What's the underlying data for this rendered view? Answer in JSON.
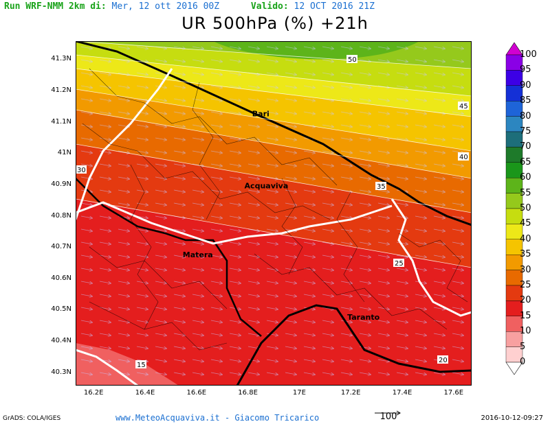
{
  "header": {
    "run_label": "Run WRF-NMM 2km di:",
    "run_date": "Mer, 12 ott 2016 00Z",
    "valid_label": "Valido:",
    "valid_date": "12 OCT 2016 21Z"
  },
  "title": "UR 500hPa (%) +21h",
  "axes": {
    "y_ticks": [
      "41.3N",
      "41.2N",
      "41.1N",
      "41N",
      "40.9N",
      "40.8N",
      "40.7N",
      "40.6N",
      "40.5N",
      "40.4N",
      "40.3N"
    ],
    "y_values": [
      41.3,
      41.2,
      41.1,
      41.0,
      40.9,
      40.8,
      40.7,
      40.6,
      40.5,
      40.4,
      40.3
    ],
    "x_ticks": [
      "16.2E",
      "16.4E",
      "16.6E",
      "16.8E",
      "17E",
      "17.2E",
      "17.4E",
      "17.6E"
    ],
    "x_values": [
      16.2,
      16.4,
      16.6,
      16.8,
      17.0,
      17.2,
      17.4,
      17.6
    ],
    "lon_range": [
      16.13,
      17.67
    ],
    "lat_range": [
      40.26,
      41.36
    ]
  },
  "cities": [
    {
      "name": "Bari",
      "lon": 16.87,
      "lat": 41.12
    },
    {
      "name": "Acquaviva",
      "lon": 16.84,
      "lat": 40.89
    },
    {
      "name": "Matera",
      "lon": 16.6,
      "lat": 40.67
    },
    {
      "name": "Taranto",
      "lon": 17.24,
      "lat": 40.47
    }
  ],
  "contour_labels": [
    "50",
    "45",
    "40",
    "35",
    "30",
    "25",
    "20",
    "15"
  ],
  "colorbar": {
    "levels": [
      "100",
      "95",
      "90",
      "85",
      "80",
      "75",
      "70",
      "65",
      "60",
      "55",
      "50",
      "45",
      "40",
      "35",
      "30",
      "25",
      "20",
      "15",
      "10",
      "5",
      "0"
    ],
    "colors": [
      "#d100d1",
      "#8a00e6",
      "#3c00e6",
      "#1430d6",
      "#1e64d8",
      "#2c86c0",
      "#1d6e7a",
      "#1e7a2a",
      "#1a961a",
      "#5db41a",
      "#95c91c",
      "#c6dd10",
      "#ede818",
      "#f5c400",
      "#f29a00",
      "#e86a00",
      "#e43a10",
      "#e41e1e",
      "#f06060",
      "#f8a0a0",
      "#ffd0d0"
    ]
  },
  "footer": {
    "left": "GrADS: COLA/IGES",
    "center": "www.MeteoAcquaviva.it - Giacomo Tricarico",
    "vector_scale": "100",
    "right": "2016-10-12-09:27"
  }
}
